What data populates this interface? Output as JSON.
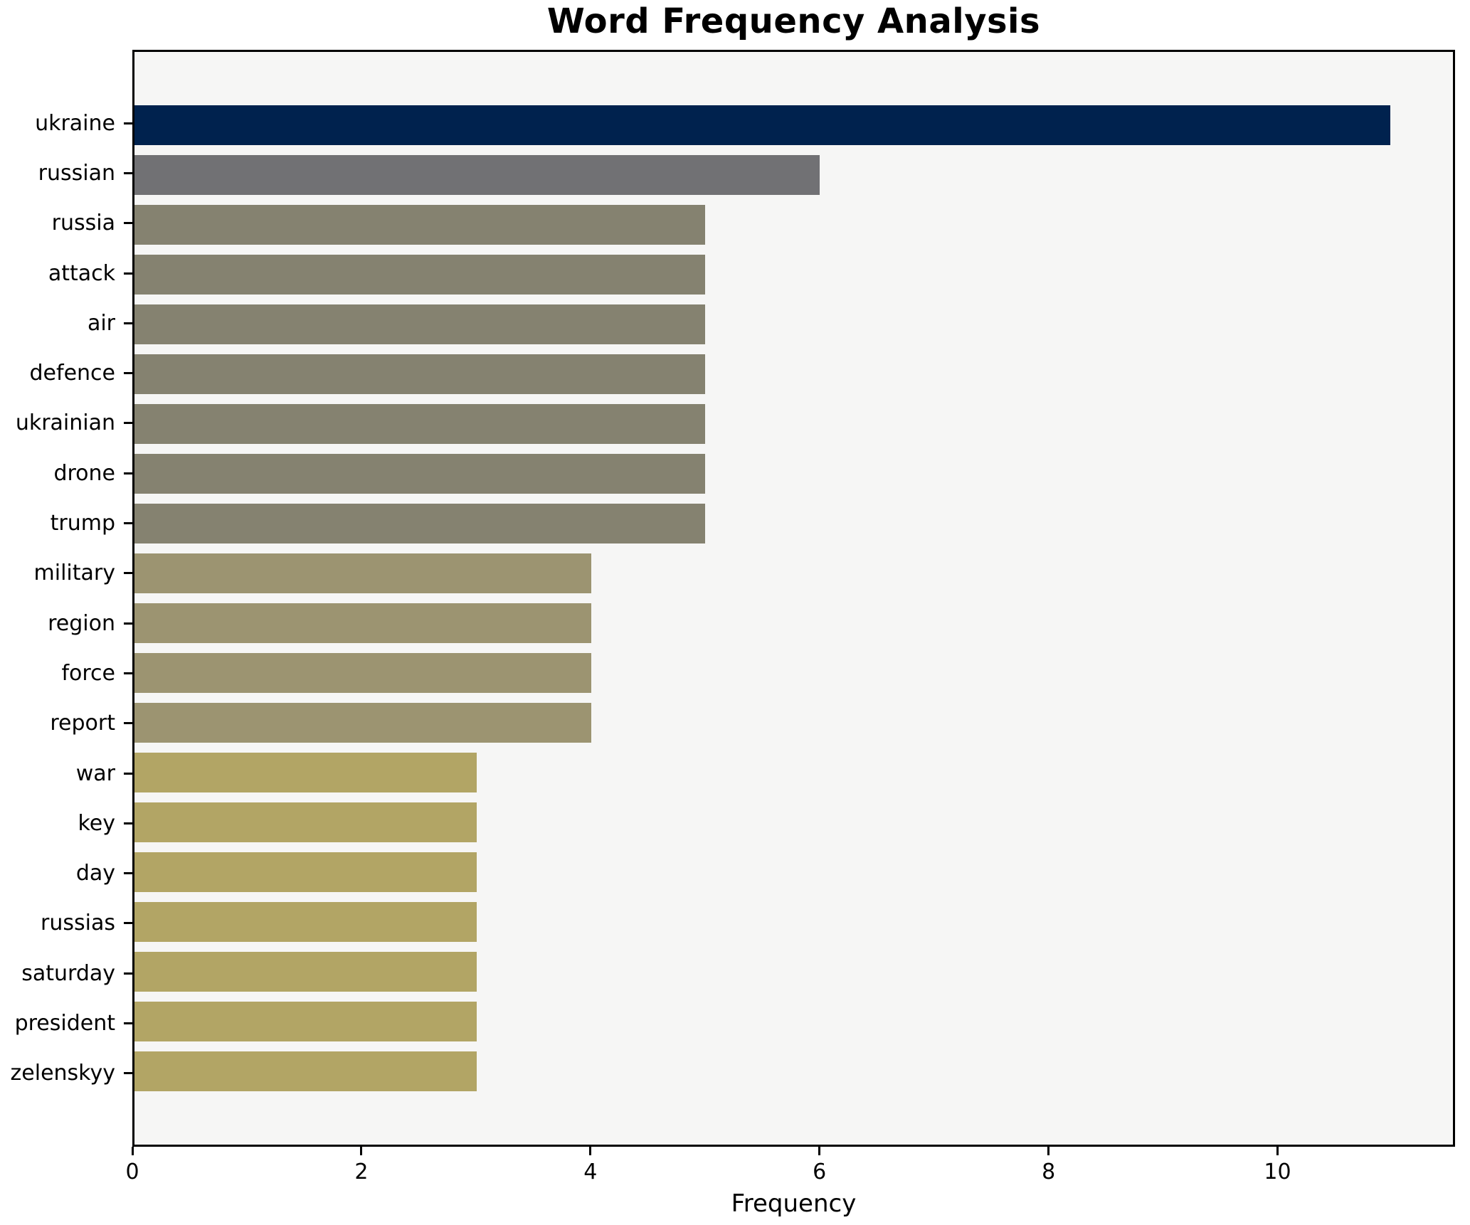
{
  "chart_data": {
    "type": "bar",
    "orientation": "horizontal",
    "title": "Word Frequency Analysis",
    "xlabel": "Frequency",
    "ylabel": "",
    "categories": [
      "ukraine",
      "russian",
      "russia",
      "attack",
      "air",
      "defence",
      "ukrainian",
      "drone",
      "trump",
      "military",
      "region",
      "force",
      "report",
      "war",
      "key",
      "day",
      "russias",
      "saturday",
      "president",
      "zelenskyy"
    ],
    "values": [
      11,
      6,
      5,
      5,
      5,
      5,
      5,
      5,
      5,
      4,
      4,
      4,
      4,
      3,
      3,
      3,
      3,
      3,
      3,
      3
    ],
    "bar_colors": [
      "#00224E",
      "#717174",
      "#858270",
      "#858270",
      "#858270",
      "#858270",
      "#858270",
      "#858270",
      "#858270",
      "#9C9471",
      "#9C9471",
      "#9C9471",
      "#9C9471",
      "#B2A565",
      "#B2A565",
      "#B2A565",
      "#B2A565",
      "#B2A565",
      "#B2A565",
      "#B2A565"
    ],
    "xlim": [
      0,
      11.55
    ],
    "xticks": [
      0,
      2,
      4,
      6,
      8,
      10
    ],
    "grid": false,
    "legend": null,
    "plot_background": "#F6F6F5",
    "figure_background": "#FFFFFF",
    "axis_color": "#000000"
  }
}
